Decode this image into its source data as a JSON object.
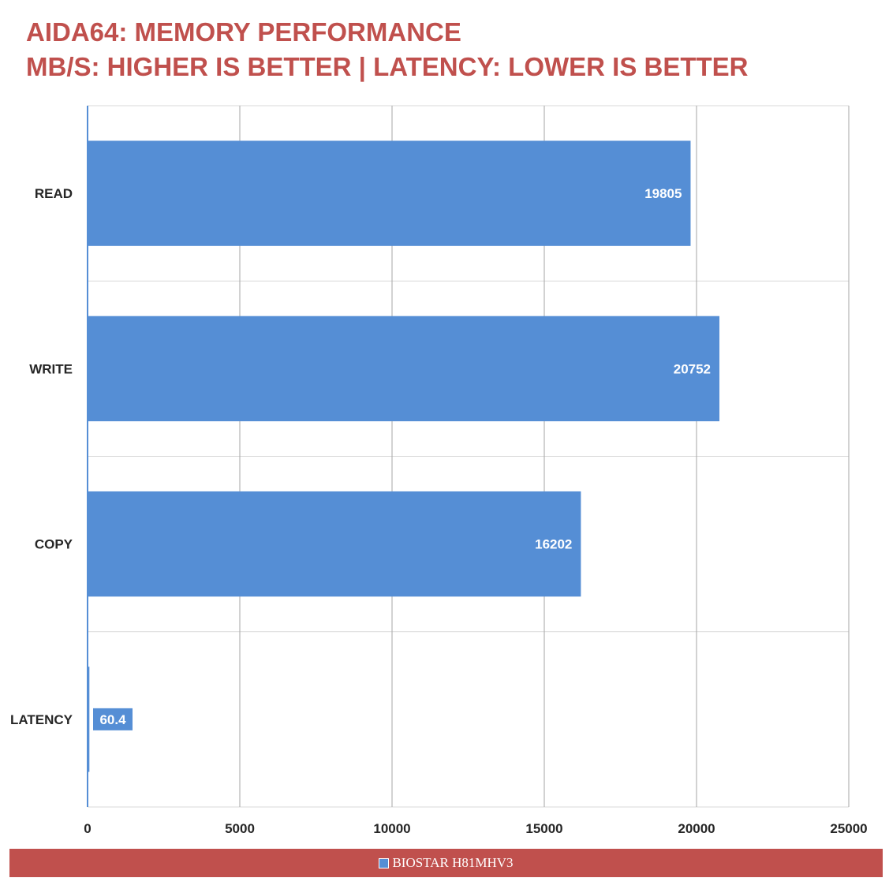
{
  "title_line1": "AIDA64: MEMORY PERFORMANCE",
  "title_line2": "MB/S: HIGHER IS BETTER | LATENCY: LOWER IS BETTER",
  "chart_data": {
    "type": "bar",
    "orientation": "horizontal",
    "categories": [
      "READ",
      "WRITE",
      "COPY",
      "LATENCY"
    ],
    "series": [
      {
        "name": "BIOSTAR H81MHV3",
        "values": [
          19805,
          20752,
          16202,
          60.4
        ]
      }
    ],
    "xlim": [
      0,
      25000
    ],
    "xticks": [
      0,
      5000,
      10000,
      15000,
      20000,
      25000
    ],
    "grid": true,
    "legend_position": "bottom",
    "bar_color": "#558ed5",
    "accent_color": "#c0504d"
  }
}
